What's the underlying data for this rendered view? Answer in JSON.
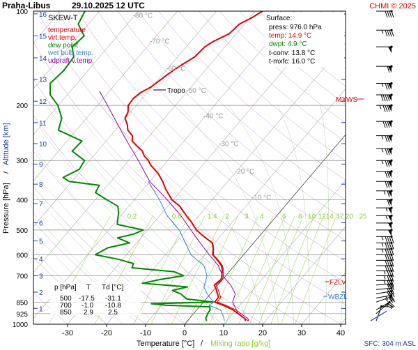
{
  "header": {
    "station": "Praha-Libus",
    "datetime": "29.10.2025 12 UTC",
    "copyright": "CHMI © 2025"
  },
  "legend": {
    "title": "SKEW-T",
    "items": [
      {
        "label": "temperature",
        "color": "#dd0000"
      },
      {
        "label": "virt.temp.",
        "color": "#dd0000"
      },
      {
        "label": "dew point",
        "color": "#008800"
      },
      {
        "label": "wet bulb temp.",
        "color": "#3a7fd0"
      },
      {
        "label": "udpraft v.temp.",
        "color": "#9900aa"
      }
    ]
  },
  "surface": {
    "title": "Surface:",
    "press": "press: 976.0 hPa",
    "temp": "temp: 14.9 °C",
    "dwpt": "dwpt: 4.9 °C",
    "tconv": "t-conv: 13.8 °C",
    "tmxfc": "t-mxfc: 16.0 °C"
  },
  "axes": {
    "xlabel": "Temperature [°C]",
    "mixing_label": "Mixing ratio [g/kg]",
    "ylabel_pressure": "Pressure [hPa]",
    "ylabel_altitude": "Altitude [km]",
    "slash": "/",
    "sfc": "SFC: 304 m ASL"
  },
  "annotations": {
    "tropo": "Tropo",
    "mxws": "MXWS",
    "fzlv": "FZLV",
    "wbzl": "WBZL"
  },
  "table": {
    "headers": [
      "p [hPa]",
      "T",
      "Td [°C]"
    ],
    "rows": [
      [
        "500",
        "-17.5",
        "-31.1"
      ],
      [
        "700",
        "-1.0",
        "-10.8"
      ],
      [
        "850",
        "2.9",
        "2.5"
      ]
    ]
  },
  "colors": {
    "temperature": "#dd0000",
    "dewpoint": "#008800",
    "wetbulb": "#3a7fd0",
    "parcel": "#9900aa",
    "mixing": "#8ccf3c",
    "isotherm": "#b0b0b0",
    "altitude": "#1f3fa8",
    "grid": "#888888"
  },
  "chart_data": {
    "type": "line",
    "title": "Praha-Libus 29.10.2025 12 UTC",
    "xlabel": "Temperature [°C]",
    "ylabel": "Pressure [hPa]",
    "xlim": [
      -37,
      43
    ],
    "ylim": [
      1000,
      100
    ],
    "pressure_ticks": [
      100,
      200,
      300,
      400,
      500,
      600,
      700,
      850,
      925,
      1000
    ],
    "temperature_ticks": [
      -30,
      -20,
      -10,
      0,
      10,
      20,
      30,
      40
    ],
    "altitude_ticks_km": [
      1,
      2,
      3,
      4,
      5,
      6,
      7,
      8,
      9,
      10,
      11,
      12,
      13,
      14,
      15,
      16
    ],
    "altitude_tick_pressure": [
      890,
      790,
      700,
      618,
      542,
      474,
      412,
      357,
      308,
      265,
      227,
      194,
      165,
      141,
      120,
      102
    ],
    "isotherm_labels": [
      -80,
      -70,
      -60,
      -50,
      -40,
      -30,
      -20,
      -10
    ],
    "isotherm_label_pressure": [
      105,
      127,
      155,
      182,
      220,
      270,
      330,
      400
    ],
    "mixing_ratio_labels": [
      "0.2",
      "0.6",
      "1.4",
      "2",
      "3",
      "4",
      "6",
      "8",
      "10",
      "12",
      "14",
      "17",
      "20",
      "25"
    ],
    "mixing_label_temperature": [
      -13.5,
      -2,
      7.1,
      10.9,
      15.9,
      19.8,
      25.5,
      29.6,
      32.6,
      35.2,
      37.2,
      39.8,
      42.2,
      45.7
    ],
    "mixing_label_pressure": 450,
    "series": [
      {
        "name": "temperature",
        "pressure": [
          976,
          960,
          925,
          900,
          870,
          850,
          820,
          800,
          770,
          750,
          720,
          700,
          670,
          650,
          630,
          600,
          570,
          550,
          520,
          500,
          470,
          450,
          420,
          400,
          370,
          350,
          330,
          310,
          300,
          290,
          280,
          270,
          260,
          250,
          240,
          230,
          220,
          210,
          200,
          190,
          182,
          175,
          168,
          160,
          150,
          140,
          130,
          125,
          118,
          110,
          105,
          100
        ],
        "values": [
          14.9,
          14.2,
          11.4,
          9.3,
          5.8,
          2.9,
          2.8,
          1.8,
          0.3,
          -0.9,
          -0.4,
          -1.0,
          -2.2,
          -3.3,
          -5.0,
          -7.9,
          -9.3,
          -10.6,
          -14.8,
          -17.5,
          -20.7,
          -23.2,
          -26.9,
          -30.4,
          -34.3,
          -36.7,
          -39.6,
          -43.4,
          -44.9,
          -47.0,
          -48.5,
          -50.9,
          -53.3,
          -54.4,
          -56.8,
          -58.2,
          -60.1,
          -60.7,
          -62.1,
          -62.3,
          -61.7,
          -60.3,
          -59.6,
          -58.8,
          -57.5,
          -55.6,
          -55.2,
          -54.2,
          -51.8,
          -51.3,
          -49.5,
          -48.2
        ]
      },
      {
        "name": "dew point",
        "pressure": [
          976,
          960,
          925,
          900,
          880,
          870,
          860,
          850,
          830,
          800,
          780,
          760,
          740,
          720,
          700,
          680,
          660,
          640,
          620,
          600,
          585,
          570,
          550,
          530,
          515,
          500,
          480,
          460,
          440,
          420,
          400,
          380,
          360,
          350,
          340,
          320,
          300,
          280,
          260,
          240,
          220,
          200,
          185,
          170,
          155,
          140,
          130,
          120,
          110,
          100
        ],
        "values": [
          4.9,
          4.2,
          3.6,
          3.4,
          2.7,
          -9.0,
          -13.0,
          2.5,
          -5.0,
          -7.6,
          -10.5,
          -7.4,
          -19.7,
          -16.0,
          -10.8,
          -14.1,
          -25.8,
          -26.3,
          -31.2,
          -38.0,
          -37.2,
          -36.3,
          -31.8,
          -36.0,
          -32.6,
          -31.1,
          -39.0,
          -40.1,
          -41.2,
          -42.8,
          -47.1,
          -51.5,
          -52.1,
          -60.6,
          -63.1,
          -60.7,
          -61.3,
          -66.5,
          -66.2,
          -74.6,
          -76.3,
          -80.1,
          -84.4,
          -86.9,
          -86.2,
          -86.6,
          -89.2,
          -88.5,
          -92.6,
          -93.7
        ]
      },
      {
        "name": "wet bulb temp.",
        "pressure": [
          976,
          950,
          925,
          900,
          870,
          850,
          820,
          800,
          760,
          700,
          650,
          600,
          550,
          500,
          450,
          400,
          350
        ],
        "values": [
          9.5,
          8.5,
          7.3,
          6.1,
          2.1,
          2.7,
          0.5,
          -0.8,
          -3.2,
          -4.8,
          -7.8,
          -13.5,
          -17.5,
          -21.9,
          -28.1,
          -33.6,
          -40.4
        ]
      },
      {
        "name": "udpraft v.temp.",
        "pressure": [
          976,
          925,
          850,
          800,
          750,
          700,
          650,
          600,
          550,
          500,
          450,
          400,
          350,
          300,
          250,
          200,
          180
        ],
        "values": [
          15.6,
          11.4,
          7.5,
          6.4,
          3.3,
          -0.8,
          -4.1,
          -8.8,
          -13.7,
          -18.9,
          -24.6,
          -31.6,
          -40.0,
          -47.5,
          -56.6,
          -67.4,
          -72.6
        ]
      }
    ],
    "wind_barbs": [
      {
        "pressure": 976,
        "direction": 200,
        "speed_kt": 10
      },
      {
        "pressure": 925,
        "direction": 230,
        "speed_kt": 20
      },
      {
        "pressure": 900,
        "direction": 240,
        "speed_kt": 20
      },
      {
        "pressure": 850,
        "direction": 250,
        "speed_kt": 25
      },
      {
        "pressure": 825,
        "direction": 260,
        "speed_kt": 25
      },
      {
        "pressure": 800,
        "direction": 260,
        "speed_kt": 30
      },
      {
        "pressure": 775,
        "direction": 265,
        "speed_kt": 30
      },
      {
        "pressure": 750,
        "direction": 265,
        "speed_kt": 30
      },
      {
        "pressure": 725,
        "direction": 270,
        "speed_kt": 35
      },
      {
        "pressure": 700,
        "direction": 270,
        "speed_kt": 35
      },
      {
        "pressure": 675,
        "direction": 270,
        "speed_kt": 35
      },
      {
        "pressure": 650,
        "direction": 270,
        "speed_kt": 40
      },
      {
        "pressure": 625,
        "direction": 270,
        "speed_kt": 40
      },
      {
        "pressure": 600,
        "direction": 270,
        "speed_kt": 40
      },
      {
        "pressure": 575,
        "direction": 270,
        "speed_kt": 45
      },
      {
        "pressure": 550,
        "direction": 270,
        "speed_kt": 45
      },
      {
        "pressure": 525,
        "direction": 270,
        "speed_kt": 45
      },
      {
        "pressure": 500,
        "direction": 270,
        "speed_kt": 50
      },
      {
        "pressure": 475,
        "direction": 270,
        "speed_kt": 50
      },
      {
        "pressure": 450,
        "direction": 270,
        "speed_kt": 55
      },
      {
        "pressure": 425,
        "direction": 270,
        "speed_kt": 55
      },
      {
        "pressure": 400,
        "direction": 270,
        "speed_kt": 60
      },
      {
        "pressure": 375,
        "direction": 270,
        "speed_kt": 65
      },
      {
        "pressure": 350,
        "direction": 270,
        "speed_kt": 70
      },
      {
        "pressure": 325,
        "direction": 270,
        "speed_kt": 70
      },
      {
        "pressure": 300,
        "direction": 270,
        "speed_kt": 75
      },
      {
        "pressure": 275,
        "direction": 270,
        "speed_kt": 75
      },
      {
        "pressure": 250,
        "direction": 270,
        "speed_kt": 75
      },
      {
        "pressure": 225,
        "direction": 270,
        "speed_kt": 80
      },
      {
        "pressure": 200,
        "direction": 270,
        "speed_kt": 85
      },
      {
        "pressure": 185,
        "direction": 270,
        "speed_kt": 90
      },
      {
        "pressure": 170,
        "direction": 270,
        "speed_kt": 75
      },
      {
        "pressure": 150,
        "direction": 270,
        "speed_kt": 60
      },
      {
        "pressure": 130,
        "direction": 270,
        "speed_kt": 50
      },
      {
        "pressure": 115,
        "direction": 270,
        "speed_kt": 45
      },
      {
        "pressure": 100,
        "direction": 270,
        "speed_kt": 40
      }
    ],
    "markers": {
      "tropopause_pressure": 175,
      "max_wind_pressure": 190,
      "freezing_level_pressure": 740,
      "wet_bulb_zero_pressure": 802
    }
  }
}
